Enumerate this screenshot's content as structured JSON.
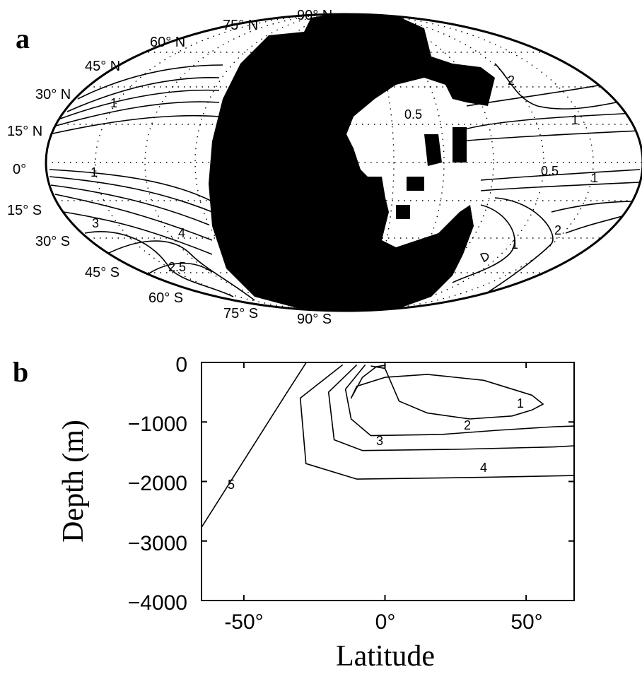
{
  "panels": {
    "a": {
      "letter": "a",
      "lat_labels": [
        "90° N",
        "75° N",
        "60° N",
        "45° N",
        "30° N",
        "15° N",
        "0°",
        "15° S",
        "30° S",
        "45° S",
        "60° S",
        "75° S",
        "90° S"
      ],
      "contour_labels": [
        "1",
        "2",
        "1",
        "0.5",
        "0.5",
        "1",
        "1",
        "3",
        "4",
        "2.5",
        "1",
        "2"
      ]
    },
    "b": {
      "letter": "b",
      "contour_labels": [
        "1",
        "2",
        "3",
        "4",
        "5"
      ]
    }
  },
  "chart_data": [
    {
      "type": "map",
      "projection": "mollweide",
      "latitude_labels": [
        "90° N",
        "75° N",
        "60° N",
        "45° N",
        "30° N",
        "15° N",
        "0°",
        "15° S",
        "30° S",
        "45° S",
        "60° S",
        "75° S",
        "90° S"
      ],
      "contour_levels_labeled": [
        0.5,
        1,
        2,
        2.5,
        3,
        4
      ],
      "grid": true,
      "land": "filled black"
    },
    {
      "type": "line",
      "subtype": "contour",
      "xlabel": "Latitude",
      "ylabel": "Depth (m)",
      "xlim": [
        -65,
        67
      ],
      "ylim": [
        -4000,
        0
      ],
      "x_ticks": [
        -50,
        0,
        50
      ],
      "x_tick_labels": [
        "-50°",
        "0°",
        "50°"
      ],
      "y_ticks": [
        0,
        -1000,
        -2000,
        -3000,
        -4000
      ],
      "y_tick_labels": [
        "0",
        "−1000",
        "−2000",
        "−3000",
        "−4000"
      ],
      "contour_levels_labeled": [
        1,
        2,
        3,
        4,
        5
      ],
      "series": [
        {
          "name": "1",
          "x": [
            -5,
            0,
            5,
            15,
            30,
            45,
            52,
            56,
            52,
            35,
            15,
            0,
            -10,
            -12,
            -8,
            -3,
            0
          ],
          "y": [
            -60,
            -100,
            -650,
            -850,
            -950,
            -900,
            -800,
            -700,
            -550,
            -300,
            -200,
            -250,
            -400,
            -600,
            -250,
            -70,
            -50
          ]
        },
        {
          "name": "2",
          "x": [
            -7,
            -14,
            -12,
            -5,
            20,
            40,
            60,
            67
          ],
          "y": [
            -40,
            -450,
            -950,
            -1230,
            -1210,
            -1140,
            -1080,
            -1070
          ]
        },
        {
          "name": "3",
          "x": [
            -10,
            -20,
            -18,
            -8,
            25,
            60,
            67
          ],
          "y": [
            -40,
            -500,
            -1300,
            -1480,
            -1460,
            -1420,
            -1400
          ]
        },
        {
          "name": "4",
          "x": [
            -15,
            -30,
            -28,
            -10,
            35,
            67
          ],
          "y": [
            -40,
            -600,
            -1700,
            -1960,
            -1930,
            -1900
          ]
        },
        {
          "name": "5",
          "x": [
            -28,
            -34,
            -65
          ],
          "y": [
            -10,
            -450,
            -2770
          ]
        }
      ]
    }
  ]
}
